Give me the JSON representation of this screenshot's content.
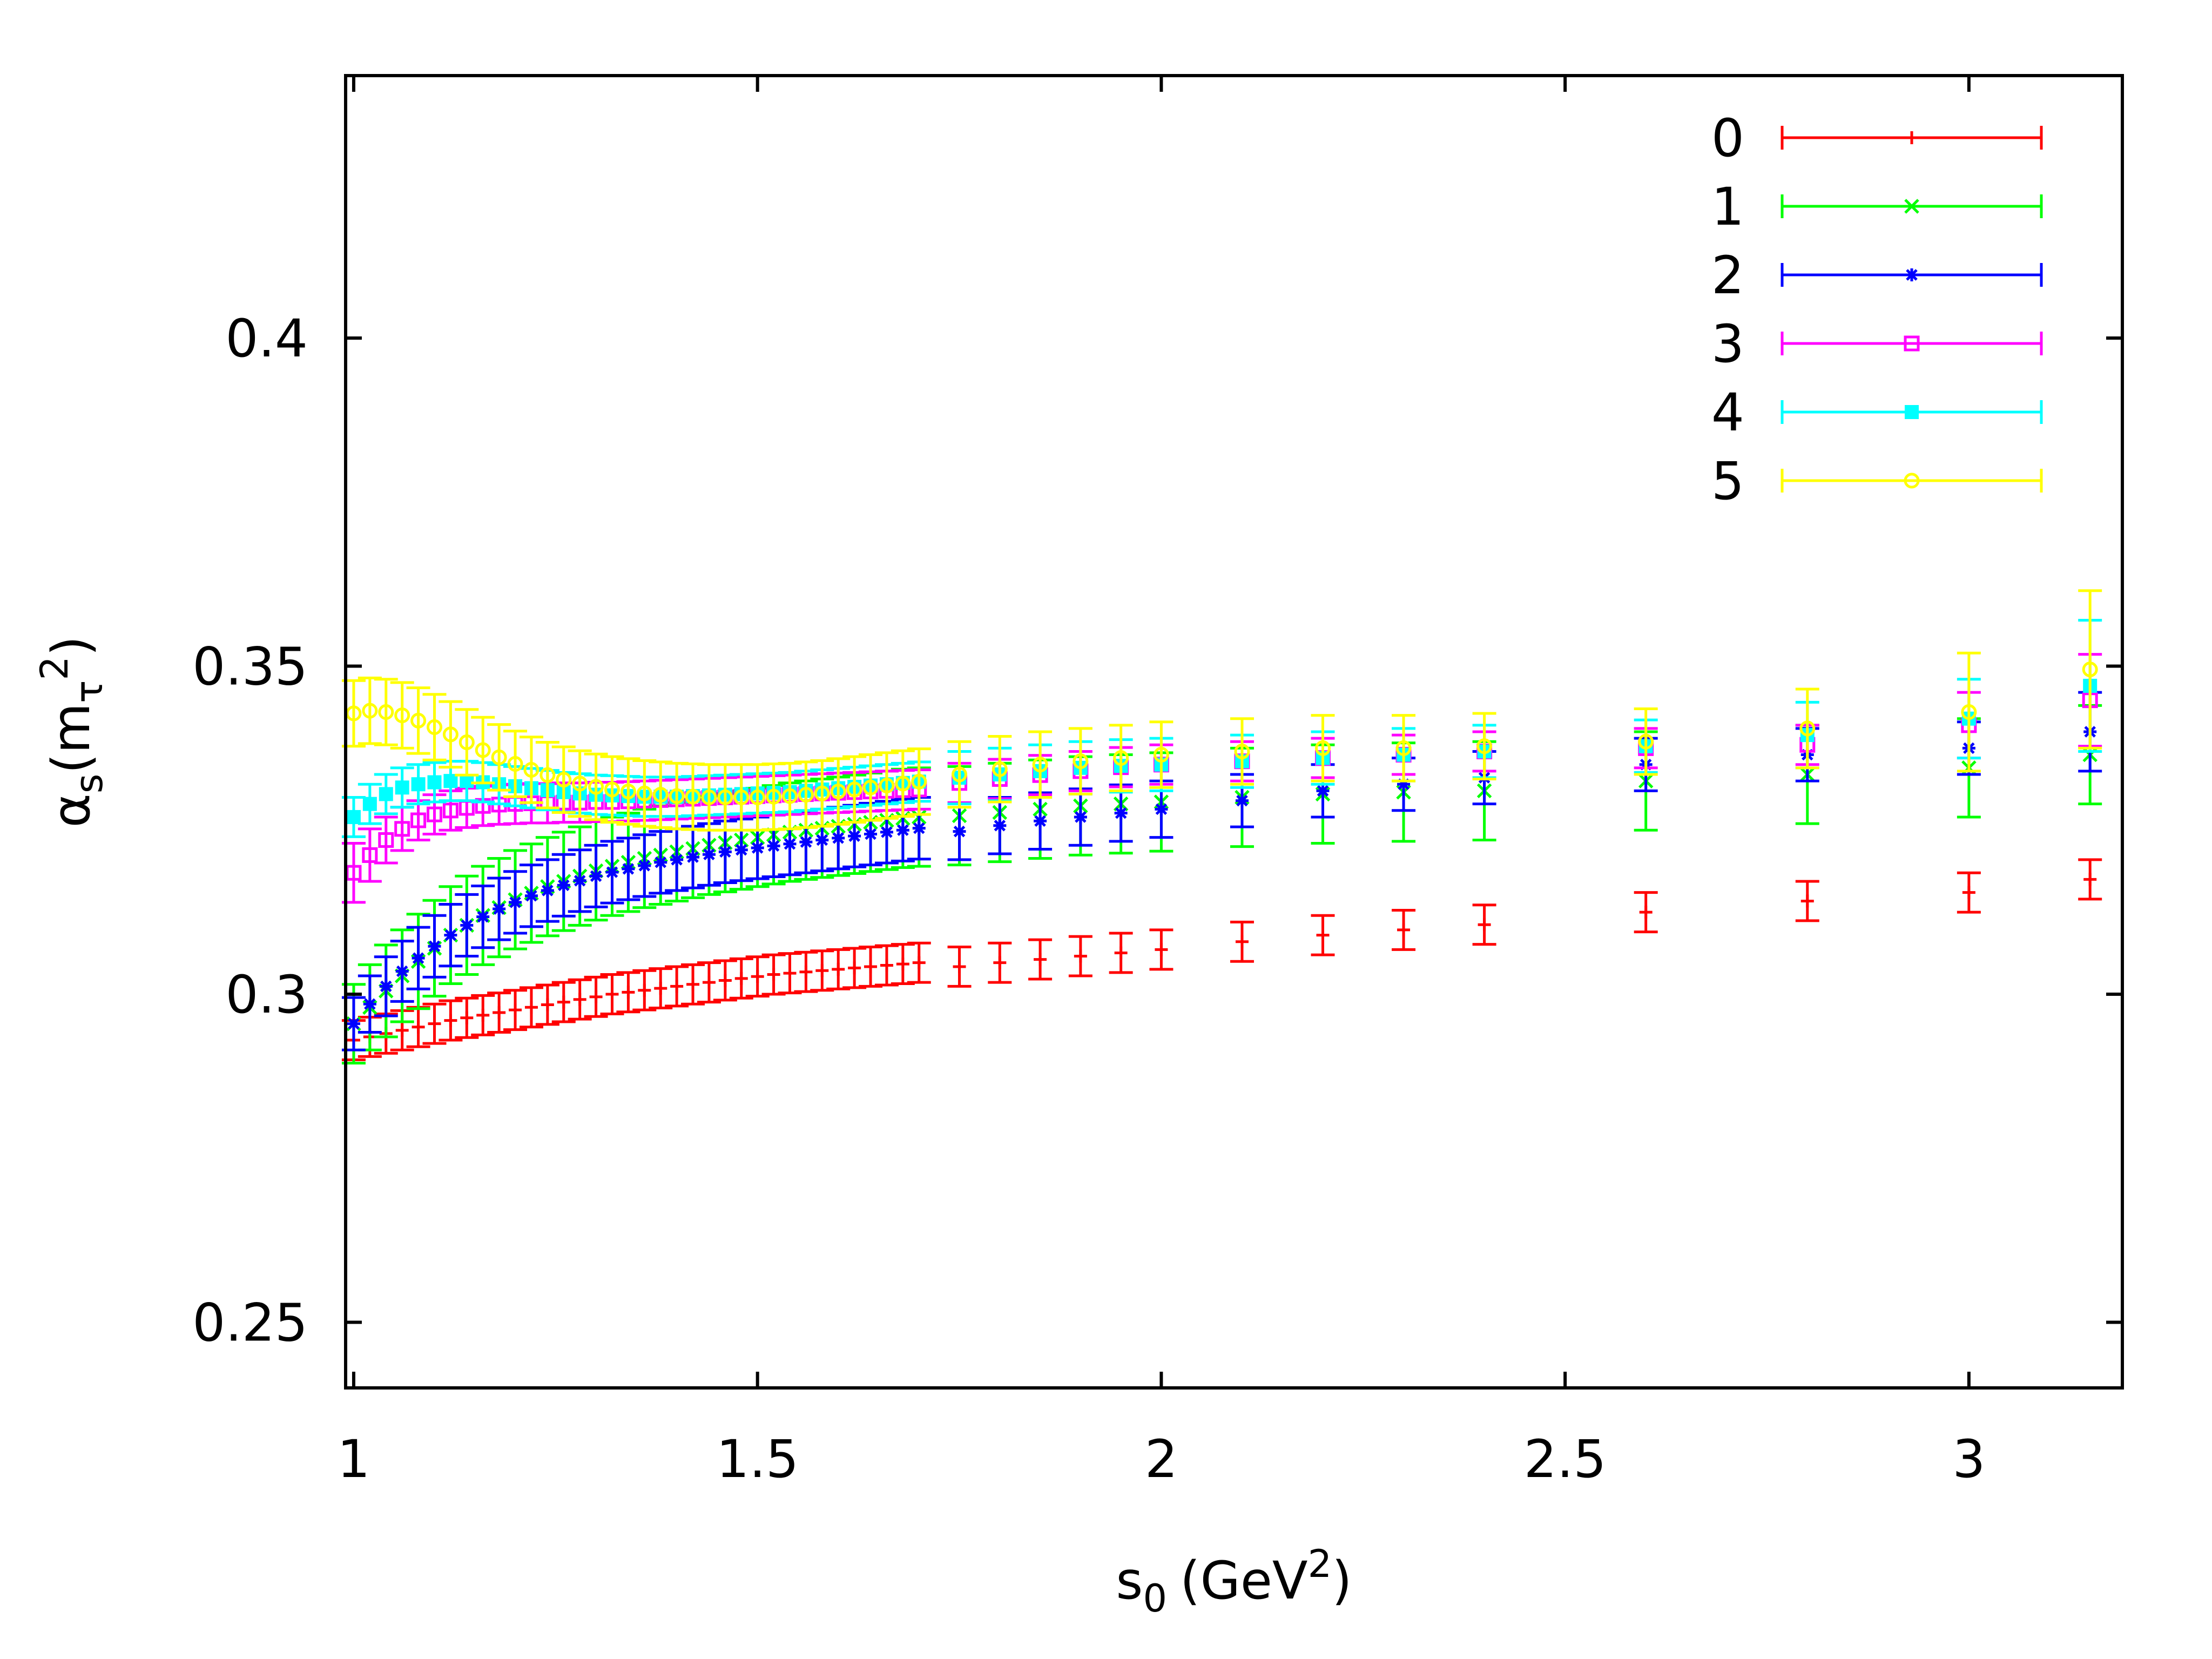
{
  "chart_data": {
    "type": "scatter",
    "title": "",
    "xlabel": "s0 (GeV2)",
    "xlabel_parts": {
      "main": "s",
      "sub": "0",
      "unit_open": "(GeV",
      "sup": "2",
      "unit_close": ")"
    },
    "ylabel": "αs(mτ2)",
    "ylabel_parts": {
      "alpha": "α",
      "sub_s": "s",
      "open": "(m",
      "sub_tau": "τ",
      "sup": "2",
      "close": ")"
    },
    "xlim": [
      0.99,
      3.19
    ],
    "ylim": [
      0.24,
      0.44
    ],
    "x_ticks": [
      1,
      1.5,
      2,
      2.5,
      3
    ],
    "x_tick_labels": [
      "1",
      "1.5",
      "2",
      "2.5",
      "3"
    ],
    "y_ticks": [
      0.25,
      0.3,
      0.35,
      0.4
    ],
    "y_tick_labels": [
      "0.25",
      "0.3",
      "0.35",
      "0.4"
    ],
    "grid": false,
    "legend_position": "top-right",
    "x": [
      1.0,
      1.02,
      1.04,
      1.06,
      1.08,
      1.1,
      1.12,
      1.14,
      1.16,
      1.18,
      1.2,
      1.22,
      1.24,
      1.26,
      1.28,
      1.3,
      1.32,
      1.34,
      1.36,
      1.38,
      1.4,
      1.42,
      1.44,
      1.46,
      1.48,
      1.5,
      1.52,
      1.54,
      1.56,
      1.58,
      1.6,
      1.62,
      1.64,
      1.66,
      1.68,
      1.7,
      1.75,
      1.8,
      1.85,
      1.9,
      1.95,
      2.0,
      2.1,
      2.2,
      2.3,
      2.4,
      2.6,
      2.8,
      3.0,
      3.15
    ],
    "series": [
      {
        "name": "0",
        "color": "#ff0000",
        "marker": "plus",
        "values": [
          0.293,
          0.2935,
          0.294,
          0.2945,
          0.295,
          0.2955,
          0.296,
          0.2964,
          0.2968,
          0.2972,
          0.2976,
          0.298,
          0.2984,
          0.2988,
          0.2992,
          0.2996,
          0.3,
          0.3003,
          0.3006,
          0.3009,
          0.3012,
          0.3015,
          0.3018,
          0.3021,
          0.3024,
          0.3027,
          0.303,
          0.3032,
          0.3034,
          0.3036,
          0.3038,
          0.304,
          0.3042,
          0.3044,
          0.3046,
          0.3048,
          0.3042,
          0.3048,
          0.3053,
          0.3058,
          0.3063,
          0.3068,
          0.308,
          0.309,
          0.3098,
          0.3106,
          0.3125,
          0.3142,
          0.3155,
          0.3175
        ],
        "errors": [
          0.003,
          0.003,
          0.003,
          0.003,
          0.003,
          0.003,
          0.003,
          0.003,
          0.003,
          0.003,
          0.003,
          0.003,
          0.003,
          0.003,
          0.003,
          0.003,
          0.003,
          0.003,
          0.003,
          0.003,
          0.003,
          0.003,
          0.003,
          0.003,
          0.003,
          0.003,
          0.003,
          0.003,
          0.003,
          0.003,
          0.003,
          0.003,
          0.003,
          0.003,
          0.003,
          0.003,
          0.003,
          0.003,
          0.003,
          0.003,
          0.003,
          0.003,
          0.003,
          0.003,
          0.003,
          0.003,
          0.003,
          0.003,
          0.003,
          0.003
        ]
      },
      {
        "name": "1",
        "color": "#00ff00",
        "marker": "cross",
        "values": [
          0.2955,
          0.298,
          0.3005,
          0.3028,
          0.305,
          0.307,
          0.309,
          0.3105,
          0.312,
          0.3132,
          0.3144,
          0.3154,
          0.3164,
          0.3172,
          0.318,
          0.3188,
          0.3195,
          0.3201,
          0.3207,
          0.3212,
          0.3217,
          0.3222,
          0.3227,
          0.3231,
          0.3235,
          0.3239,
          0.3243,
          0.3247,
          0.325,
          0.3253,
          0.3256,
          0.3259,
          0.3262,
          0.3265,
          0.3268,
          0.327,
          0.3272,
          0.3277,
          0.3282,
          0.3287,
          0.329,
          0.3293,
          0.33,
          0.3305,
          0.3308,
          0.331,
          0.3325,
          0.3335,
          0.3345,
          0.3365
        ],
        "errors": [
          0.006,
          0.0065,
          0.007,
          0.007,
          0.0072,
          0.0073,
          0.0074,
          0.0075,
          0.0075,
          0.0075,
          0.0075,
          0.0075,
          0.0075,
          0.0075,
          0.0075,
          0.0075,
          0.0075,
          0.0075,
          0.0075,
          0.0075,
          0.0075,
          0.0075,
          0.0075,
          0.0075,
          0.0075,
          0.0075,
          0.0075,
          0.0075,
          0.0075,
          0.0075,
          0.0075,
          0.0075,
          0.0075,
          0.0075,
          0.0075,
          0.0075,
          0.0075,
          0.0075,
          0.0075,
          0.0075,
          0.0075,
          0.0075,
          0.0075,
          0.0075,
          0.0075,
          0.0075,
          0.0075,
          0.0075,
          0.0075,
          0.0075
        ]
      },
      {
        "name": "2",
        "color": "#0000ff",
        "marker": "star",
        "values": [
          0.2955,
          0.2985,
          0.3012,
          0.3035,
          0.3055,
          0.3073,
          0.309,
          0.3105,
          0.3118,
          0.313,
          0.314,
          0.315,
          0.3158,
          0.3166,
          0.3173,
          0.318,
          0.3186,
          0.3191,
          0.3196,
          0.3201,
          0.3205,
          0.3209,
          0.3213,
          0.3217,
          0.322,
          0.3223,
          0.3226,
          0.3229,
          0.3232,
          0.3235,
          0.3238,
          0.3241,
          0.3244,
          0.3247,
          0.325,
          0.3253,
          0.3248,
          0.3257,
          0.3264,
          0.327,
          0.3276,
          0.3282,
          0.3295,
          0.331,
          0.332,
          0.333,
          0.335,
          0.3365,
          0.3375,
          0.34
        ],
        "errors": [
          0.004,
          0.0043,
          0.0045,
          0.0046,
          0.0047,
          0.0047,
          0.0047,
          0.0047,
          0.0047,
          0.0047,
          0.0047,
          0.0047,
          0.0047,
          0.0047,
          0.0047,
          0.0047,
          0.0047,
          0.0047,
          0.0047,
          0.0047,
          0.0047,
          0.0047,
          0.0047,
          0.0047,
          0.0047,
          0.0047,
          0.0047,
          0.0047,
          0.0047,
          0.0047,
          0.0047,
          0.0047,
          0.0047,
          0.0047,
          0.0047,
          0.0047,
          0.0043,
          0.0043,
          0.0043,
          0.0043,
          0.0043,
          0.0043,
          0.004,
          0.004,
          0.004,
          0.004,
          0.004,
          0.004,
          0.004,
          0.006
        ]
      },
      {
        "name": "3",
        "color": "#ff00ff",
        "marker": "open-square",
        "values": [
          0.3185,
          0.3212,
          0.3235,
          0.3252,
          0.3265,
          0.3274,
          0.328,
          0.3284,
          0.3287,
          0.3289,
          0.329,
          0.3291,
          0.3291,
          0.3292,
          0.3292,
          0.3293,
          0.3293,
          0.3294,
          0.3295,
          0.3296,
          0.3297,
          0.3298,
          0.3299,
          0.33,
          0.3301,
          0.3302,
          0.3303,
          0.3304,
          0.3305,
          0.3306,
          0.3307,
          0.3308,
          0.3309,
          0.331,
          0.3311,
          0.3312,
          0.3322,
          0.3328,
          0.3334,
          0.334,
          0.3346,
          0.335,
          0.3355,
          0.336,
          0.3365,
          0.337,
          0.3375,
          0.338,
          0.341,
          0.3448
        ],
        "errors": [
          0.0045,
          0.004,
          0.0035,
          0.0033,
          0.003,
          0.003,
          0.003,
          0.003,
          0.003,
          0.003,
          0.003,
          0.003,
          0.003,
          0.003,
          0.003,
          0.003,
          0.003,
          0.003,
          0.003,
          0.003,
          0.003,
          0.003,
          0.003,
          0.003,
          0.003,
          0.003,
          0.003,
          0.003,
          0.003,
          0.003,
          0.003,
          0.003,
          0.003,
          0.003,
          0.003,
          0.003,
          0.003,
          0.003,
          0.003,
          0.003,
          0.003,
          0.003,
          0.003,
          0.003,
          0.003,
          0.003,
          0.003,
          0.003,
          0.005,
          0.007
        ]
      },
      {
        "name": "4",
        "color": "#00ffff",
        "marker": "filled-square",
        "values": [
          0.327,
          0.329,
          0.3305,
          0.3315,
          0.332,
          0.3323,
          0.3325,
          0.3325,
          0.3323,
          0.332,
          0.3317,
          0.3314,
          0.3311,
          0.3308,
          0.3306,
          0.3304,
          0.3303,
          0.3302,
          0.3301,
          0.3301,
          0.3301,
          0.3302,
          0.3303,
          0.3304,
          0.3305,
          0.3306,
          0.3307,
          0.3308,
          0.331,
          0.3312,
          0.3314,
          0.3316,
          0.3318,
          0.332,
          0.3322,
          0.3324,
          0.333,
          0.3335,
          0.334,
          0.3345,
          0.3348,
          0.335,
          0.3355,
          0.336,
          0.3365,
          0.337,
          0.3378,
          0.3395,
          0.342,
          0.347
        ],
        "errors": [
          0.003,
          0.003,
          0.003,
          0.003,
          0.003,
          0.003,
          0.003,
          0.003,
          0.003,
          0.003,
          0.003,
          0.003,
          0.003,
          0.003,
          0.003,
          0.003,
          0.003,
          0.003,
          0.003,
          0.003,
          0.003,
          0.003,
          0.003,
          0.003,
          0.003,
          0.003,
          0.003,
          0.003,
          0.003,
          0.003,
          0.003,
          0.003,
          0.003,
          0.003,
          0.003,
          0.003,
          0.004,
          0.004,
          0.004,
          0.004,
          0.004,
          0.004,
          0.004,
          0.004,
          0.004,
          0.004,
          0.004,
          0.005,
          0.006,
          0.01
        ]
      },
      {
        "name": "5",
        "color": "#ffff00",
        "marker": "open-circle",
        "values": [
          0.3428,
          0.3432,
          0.343,
          0.3425,
          0.3417,
          0.3407,
          0.3396,
          0.3384,
          0.3372,
          0.3361,
          0.3351,
          0.3342,
          0.3334,
          0.3327,
          0.3321,
          0.3316,
          0.3312,
          0.3309,
          0.3306,
          0.3304,
          0.3302,
          0.3301,
          0.33,
          0.33,
          0.33,
          0.33,
          0.3301,
          0.3302,
          0.3304,
          0.3306,
          0.3309,
          0.3312,
          0.3315,
          0.3318,
          0.3321,
          0.3324,
          0.3335,
          0.3343,
          0.335,
          0.3355,
          0.336,
          0.3365,
          0.337,
          0.3375,
          0.3375,
          0.3378,
          0.3385,
          0.3405,
          0.343,
          0.3495
        ],
        "errors": [
          0.005,
          0.005,
          0.005,
          0.005,
          0.005,
          0.005,
          0.005,
          0.005,
          0.005,
          0.005,
          0.005,
          0.005,
          0.005,
          0.005,
          0.005,
          0.005,
          0.005,
          0.005,
          0.005,
          0.005,
          0.005,
          0.005,
          0.005,
          0.005,
          0.005,
          0.005,
          0.005,
          0.005,
          0.005,
          0.005,
          0.005,
          0.005,
          0.005,
          0.005,
          0.005,
          0.005,
          0.005,
          0.005,
          0.005,
          0.005,
          0.005,
          0.005,
          0.005,
          0.005,
          0.005,
          0.005,
          0.005,
          0.006,
          0.009,
          0.012
        ]
      }
    ]
  }
}
